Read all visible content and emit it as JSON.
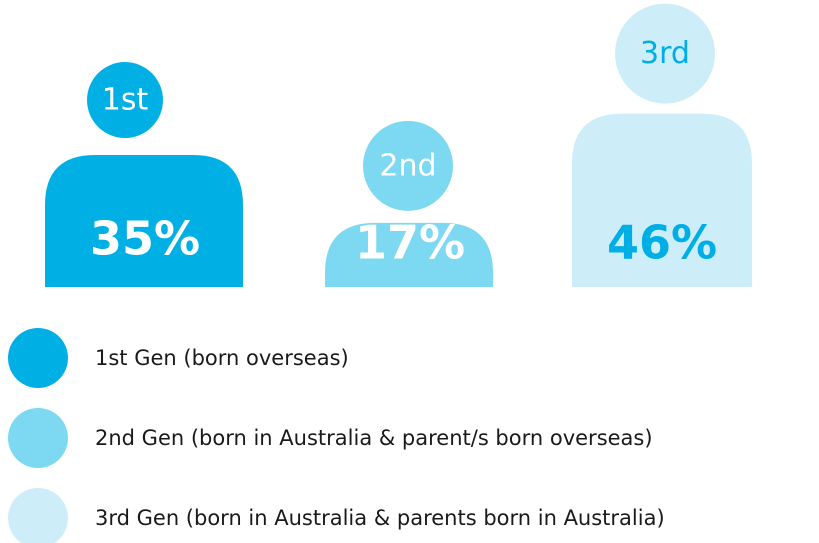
{
  "chart_data": {
    "type": "pictogram",
    "categories": [
      "1st",
      "2nd",
      "3rd"
    ],
    "values": [
      35,
      17,
      46
    ],
    "value_labels": [
      "35%",
      "17%",
      "46%"
    ],
    "colors": [
      "#00b0e4",
      "#7dd8f2",
      "#cdeef9"
    ],
    "label_colors": [
      "#ffffff",
      "#ffffff",
      "#00aee6"
    ],
    "legend": [
      "1st Gen (born overseas)",
      "2nd Gen (born in Australia & parent/s born overseas)",
      "3rd Gen (born in Australia & parents born in Australia)"
    ]
  }
}
